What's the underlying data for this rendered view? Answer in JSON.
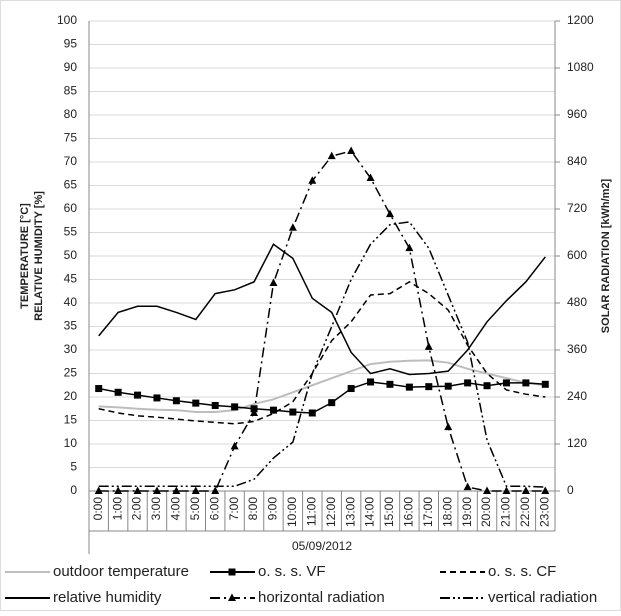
{
  "chart_data": {
    "type": "line",
    "x_label": "05/09/2012",
    "y_label_lines": [
      "TEMPERATURE [°C]",
      "RELATIVE HUMIDITY [%]"
    ],
    "y2_label": "SOLAR RADIATION [kWh/m2]",
    "categories": [
      "0:00",
      "1:00",
      "2:00",
      "3:00",
      "4:00",
      "5:00",
      "6:00",
      "7:00",
      "8:00",
      "9:00",
      "10:00",
      "11:00",
      "12:00",
      "13:00",
      "14:00",
      "15:00",
      "16:00",
      "17:00",
      "18:00",
      "19:00",
      "20:00",
      "21:00",
      "22:00",
      "23:00"
    ],
    "ylim": [
      0,
      100
    ],
    "yticks": [
      0,
      5,
      10,
      15,
      20,
      25,
      30,
      35,
      40,
      45,
      50,
      55,
      60,
      65,
      70,
      75,
      80,
      85,
      90,
      95,
      100
    ],
    "y2lim": [
      0,
      1200
    ],
    "y2ticks": [
      0,
      120,
      240,
      360,
      480,
      600,
      720,
      840,
      960,
      1080,
      1200
    ],
    "series": [
      {
        "name": "outdoor temperature",
        "color": "#bdbdbd",
        "dash": "solid",
        "marker": "none",
        "values": [
          18,
          17.8,
          17.5,
          17.3,
          17.2,
          16.8,
          16.8,
          17.2,
          18.5,
          19.5,
          21,
          22.5,
          24,
          25.5,
          27,
          27.5,
          27.7,
          27.8,
          27.3,
          26,
          25,
          24,
          23,
          22.5
        ]
      },
      {
        "name": "o. s. s.  VF",
        "color": "#000000",
        "dash": "solid",
        "marker": "square",
        "values": [
          21.8,
          21,
          20.4,
          19.8,
          19.2,
          18.7,
          18.2,
          17.9,
          17.5,
          17.2,
          16.8,
          16.6,
          18.8,
          21.8,
          23.2,
          22.7,
          22.1,
          22.2,
          22.3,
          23,
          22.4,
          23,
          23,
          22.7
        ]
      },
      {
        "name": "o. s. s.  CF",
        "color": "#000000",
        "dash": "dash",
        "marker": "none",
        "values": [
          17.5,
          16.6,
          16,
          15.7,
          15.3,
          14.9,
          14.6,
          14.3,
          14.8,
          16.5,
          19,
          25,
          32,
          36,
          41.7,
          42,
          44.5,
          42,
          38.5,
          31,
          25,
          21.5,
          20.6,
          20
        ]
      },
      {
        "name": "relative humidity",
        "color": "#000000",
        "dash": "solid",
        "marker": "none",
        "values": [
          33,
          38,
          39.3,
          39.3,
          38,
          36.5,
          42,
          42.8,
          44.5,
          52.5,
          49.5,
          41,
          38,
          29.5,
          25,
          26,
          24.8,
          25,
          25.5,
          30,
          36,
          40.5,
          44.5,
          49.8
        ]
      },
      {
        "name": "horizontal radiation",
        "color": "#000000",
        "dash": "dashdot",
        "marker": "triangle",
        "axis": "y2",
        "values": [
          0,
          0,
          0,
          0,
          0,
          0,
          0,
          114,
          199,
          531,
          672,
          792,
          855,
          868,
          799,
          707,
          620,
          368,
          163,
          10,
          0,
          0,
          0,
          0
        ]
      },
      {
        "name": "vertical radiation",
        "color": "#000000",
        "dash": "dashdotdot",
        "marker": "none",
        "axis": "y2",
        "values": [
          12,
          12,
          12,
          12,
          12,
          12,
          12,
          12,
          30,
          84,
          125,
          300,
          420,
          540,
          630,
          680,
          687,
          620,
          500,
          380,
          130,
          12,
          12,
          10
        ]
      }
    ]
  }
}
